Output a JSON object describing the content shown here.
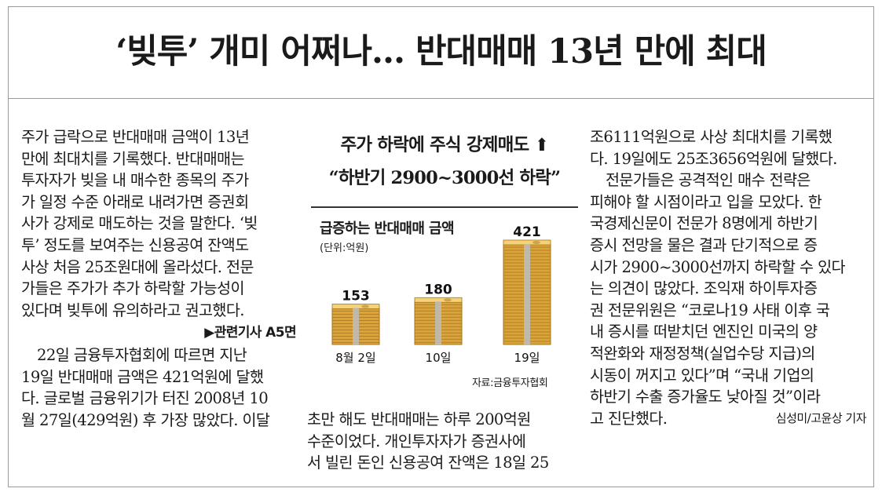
{
  "headline": "‘빚투’ 개미 어쩌나… 반대매매 13년 만에 최대",
  "col1": [
    "주가 급락으로 반대매매 금액이 13년",
    "만에 최대치를 기록했다. 반대매매는",
    "투자자가 빚을 내 매수한 종목의 주가",
    "가 일정 수준 아래로 내려가면 증권회",
    "사가 강제로 매도하는 것을 말한다. ‘빚",
    "투’ 정도를 보여주는 신용공여 잔액도",
    "사상 처음 25조원대에 올라섰다. 전문",
    "가들은 주가가 추가 하락할 가능성이",
    "있다며 빚투에 유의하라고 권고했다."
  ],
  "related": "▶관련기사 A5면",
  "col1b": [
    "22일 금융투자협회에 따르면 지난",
    "19일 반대매매 금액은 421억원에 달했",
    "다. 글로벌 금융위기가 터진 2008년 10",
    "월 27일(429억원) 후 가장 많았다. 이달"
  ],
  "subhead1": "주가 하락에 주식 강제매도 ⬆",
  "subhead2": "“하반기 2900~3000선 하락”",
  "col2b": [
    "초만 해도 반대매매는 하루 200억원",
    "수준이었다. 개인투자자가 증권사에",
    "서 빌린 돈인 신용공여 잔액은 18일 25"
  ],
  "col3": [
    "조6111억원으로 사상 최대치를 기록했",
    "다. 19일에도 25조3656억원에 달했다.",
    "전문가들은 공격적인 매수 전략은",
    "피해야 할 시점이라고 입을 모았다. 한",
    "국경제신문이 전문가 8명에게 하반기",
    "증시 전망을 물은 결과 단기적으로 증",
    "시가 2900~3000선까지 하락할 수 있다",
    "는 의견이 많았다. 조익재 하이투자증",
    "권 전문위원은 “코로나19 사태 이후 국",
    "내 증시를 떠받치던 엔진인 미국의 양",
    "적완화와 재정정책(실업수당 지급)의",
    "시동이 꺼지고 있다”며 “국내 기업의",
    "하반기 수출 증가율도 낮아질 것”이라",
    "고 진단했다."
  ],
  "byline": "심성미/고윤상 기자",
  "chart_data": {
    "type": "bar",
    "title": "급증하는 반대매매 금액",
    "unit": "(단위:억원)",
    "source": "자료:금융투자협회",
    "categories": [
      "8월 2일",
      "10일",
      "19일"
    ],
    "values": [
      153,
      180,
      421
    ],
    "value_labels": [
      "153",
      "180",
      "421"
    ],
    "ylim": [
      0,
      450
    ],
    "colors": {
      "gold": "#d9a53a",
      "gold_dark": "#a8741c",
      "gold_light": "#f3d27a",
      "band": "#bdbdbd"
    }
  }
}
